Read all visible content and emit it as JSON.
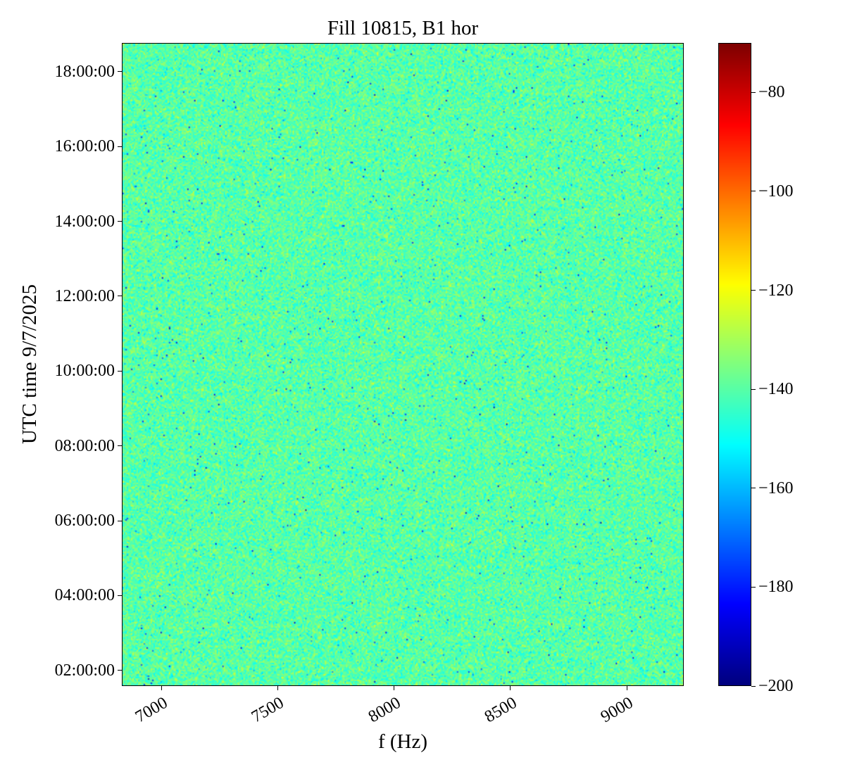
{
  "chart_data": {
    "type": "heatmap",
    "title": "Fill 10815, B1 hor",
    "xlabel": "f (Hz)",
    "ylabel": "UTC time 9/7/2025",
    "xlim": [
      6830,
      9245
    ],
    "ylim": [
      "01:35:00",
      "18:46:00"
    ],
    "x_ticks": [
      7000,
      7500,
      8000,
      8500,
      9000
    ],
    "x_tick_labels": [
      "7000",
      "7500",
      "8000",
      "8500",
      "9000"
    ],
    "y_ticks": [
      "02:00:00",
      "04:00:00",
      "06:00:00",
      "08:00:00",
      "10:00:00",
      "12:00:00",
      "14:00:00",
      "16:00:00",
      "18:00:00"
    ],
    "colorbar": {
      "colormap": "jet",
      "range": [
        -200,
        -70
      ],
      "ticks": [
        -200,
        -180,
        -160,
        -140,
        -120,
        -100,
        -80
      ],
      "tick_labels": [
        "−200",
        "−180",
        "−160",
        "−140",
        "−120",
        "−100",
        "−80"
      ]
    },
    "z_typical": -140,
    "z_typical_spread": 6,
    "grid": false
  }
}
